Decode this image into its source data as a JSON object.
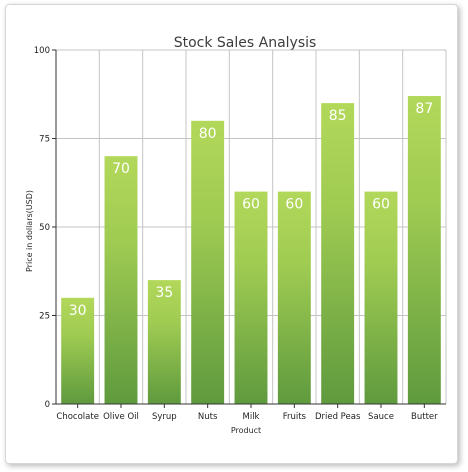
{
  "chart_data": {
    "type": "bar",
    "title": "Stock Sales Analysis",
    "xlabel": "Product",
    "ylabel": "Price in dollars(USD)",
    "categories": [
      "Chocolate",
      "Olive Oil",
      "Syrup",
      "Nuts",
      "Milk",
      "Fruits",
      "Dried Peas",
      "Sauce",
      "Butter"
    ],
    "values": [
      30,
      70,
      35,
      80,
      60,
      60,
      85,
      60,
      87
    ],
    "data_labels": [
      "30",
      "70",
      "35",
      "80",
      "60",
      "60",
      "85",
      "60",
      "87"
    ],
    "ylim": [
      0,
      100
    ],
    "yticks": [
      0,
      25,
      50,
      75,
      100
    ],
    "ytick_labels": [
      "0",
      "25",
      "50",
      "75",
      "100"
    ],
    "grid": true,
    "legend": "none",
    "colors": {
      "bar_top": "#b2d85a",
      "bar_bottom": "#5f9a3e",
      "grid": "#c4c4c4",
      "axis": "#333333",
      "label_text": "#ffffff"
    }
  }
}
